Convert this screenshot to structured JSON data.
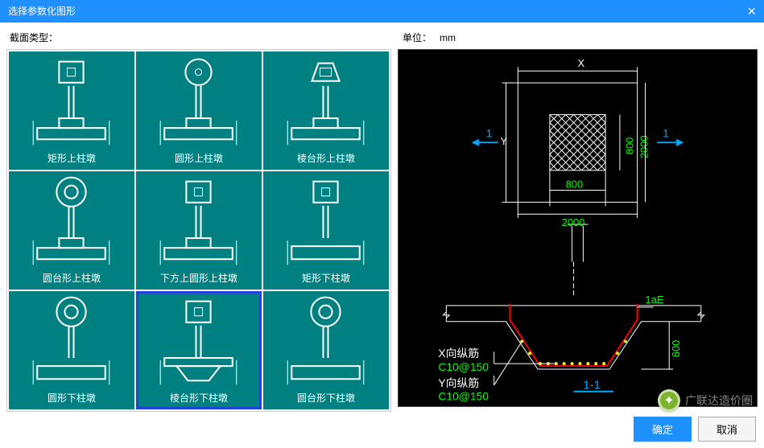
{
  "window": {
    "title": "选择参数化图形",
    "close_label": "×"
  },
  "header": {
    "section_label": "截面类型：",
    "unit_label": "单位：",
    "unit_value": "mm"
  },
  "grid": {
    "items": [
      {
        "label": "矩形上柱墩",
        "shape_top": "square",
        "base": "stepped"
      },
      {
        "label": "圆形上柱墩",
        "shape_top": "circle",
        "base": "stepped"
      },
      {
        "label": "棱台形上柱墩",
        "shape_top": "trapezoid",
        "base": "stepped"
      },
      {
        "label": "圆台形上柱墩",
        "shape_top": "ring",
        "base": "stepped"
      },
      {
        "label": "下方上圆形上柱墩",
        "shape_top": "square",
        "base": "stepped"
      },
      {
        "label": "矩形下柱墩",
        "shape_top": "square",
        "base": "flat"
      },
      {
        "label": "圆形下柱墩",
        "shape_top": "ring",
        "base": "flat"
      },
      {
        "label": "棱台形下柱墩",
        "shape_top": "square",
        "base": "trapdown",
        "selected": true
      },
      {
        "label": "圆台形下柱墩",
        "shape_top": "ring",
        "base": "flat"
      }
    ],
    "cell_bg": "#008080",
    "stroke": "#ffffff",
    "selection_color": "#2040e0"
  },
  "preview": {
    "dims": {
      "outer_X_label": "X",
      "outer_X_value": "2000",
      "outer_Y_label": "Y",
      "outer_Y_value": "2000",
      "inner_x": "800",
      "inner_y": "800",
      "section_mark": "1",
      "section_label": "1-1",
      "depth": "600",
      "ext_label": "1aE"
    },
    "rebar": {
      "x_label": "X向纵筋",
      "x_value": "C10@150",
      "y_label": "Y向纵筋",
      "y_value": "C10@150"
    },
    "colors": {
      "bg": "#000000",
      "dim_line": "#ffffff",
      "text_white": "#ffffff",
      "text_green": "#00ff00",
      "rebar_line": "#ff0000",
      "rebar_dot": "#ffff00",
      "aux_line": "#00aaff"
    }
  },
  "footer": {
    "ok": "确定",
    "cancel": "取消"
  },
  "watermark": {
    "text": "广联达造价圈"
  }
}
